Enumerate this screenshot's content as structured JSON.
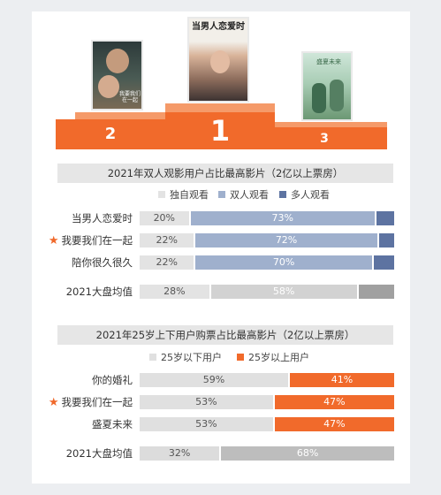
{
  "colors": {
    "orange": "#f16a2b",
    "solo": "#e3e3e3",
    "duo": "#9fb0cd",
    "multi": "#5d73a1",
    "avg_mid": "#d2d2d2",
    "avg_last": "#a0a0a0",
    "under25": "#e0e0e0",
    "over25": "#f16a2b",
    "avg2_first": "#dcdcdc",
    "avg2_second": "#bdbdbd",
    "star": "#f0682a"
  },
  "podium": {
    "posters": [
      {
        "rank": "2",
        "title": "我要我们在一起"
      },
      {
        "rank": "1",
        "title": "当男人恋爱时"
      },
      {
        "rank": "3",
        "title": "盛夏未来"
      }
    ]
  },
  "chart_data": [
    {
      "type": "bar",
      "stacked": true,
      "orientation": "horizontal",
      "title": "2021年双人观影用户占比最高影片（2亿以上票房）",
      "legend": [
        "独自观看",
        "双人观看",
        "多人观看"
      ],
      "legend_position": "top",
      "categories": [
        "当男人恋爱时",
        "我要我们在一起",
        "陪你很久很久",
        "2021大盘均值"
      ],
      "highlight": [
        "我要我们在一起"
      ],
      "series": [
        {
          "name": "独自观看",
          "values": [
            20,
            22,
            22,
            28
          ],
          "labels": [
            "20%",
            "22%",
            "22%",
            "28%"
          ]
        },
        {
          "name": "双人观看",
          "values": [
            73,
            72,
            70,
            58
          ],
          "labels": [
            "73%",
            "72%",
            "70%",
            "58%"
          ]
        },
        {
          "name": "多人观看",
          "values": [
            7,
            6,
            8,
            14
          ]
        }
      ]
    },
    {
      "type": "bar",
      "stacked": true,
      "orientation": "horizontal",
      "title": "2021年25岁上下用户购票占比最高影片（2亿以上票房）",
      "legend": [
        "25岁以下用户",
        "25岁以上用户"
      ],
      "legend_position": "top",
      "categories": [
        "你的婚礼",
        "我要我们在一起",
        "盛夏未来",
        "2021大盘均值"
      ],
      "highlight": [
        "我要我们在一起"
      ],
      "series": [
        {
          "name": "25岁以下用户",
          "values": [
            59,
            53,
            53,
            32
          ],
          "labels": [
            "59%",
            "53%",
            "53%",
            "32%"
          ]
        },
        {
          "name": "25岁以上用户",
          "values": [
            41,
            47,
            47,
            68
          ],
          "labels": [
            "41%",
            "47%",
            "47%",
            "68%"
          ]
        }
      ]
    }
  ]
}
